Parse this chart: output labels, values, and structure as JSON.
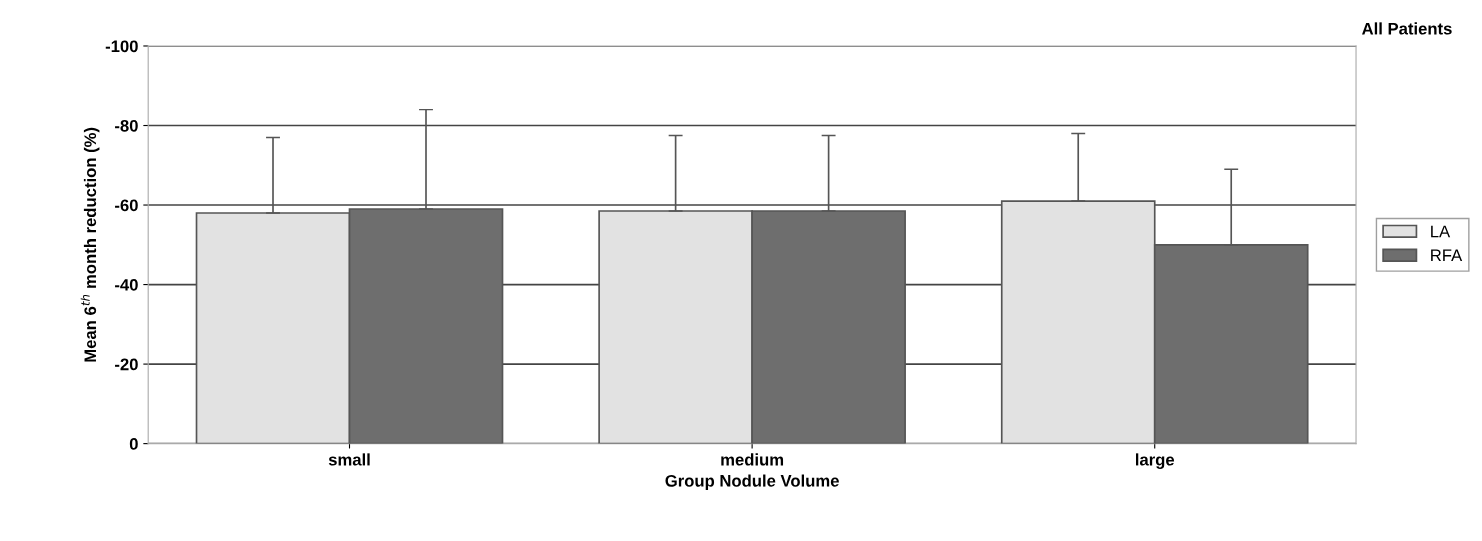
{
  "chart_data": {
    "type": "bar",
    "title": "All Patients",
    "xlabel": "Group Nodule Volume",
    "ylabel": "Mean 6$^{th}$ month reduction (%)",
    "categories": [
      "small",
      "medium",
      "large"
    ],
    "series": [
      {
        "name": "LA",
        "color": "#e2e2e2",
        "values": [
          -58,
          -58.5,
          -61
        ],
        "errors": [
          [
            -77,
            -58
          ],
          [
            -77.5,
            -58.5
          ],
          [
            -78,
            -61
          ]
        ]
      },
      {
        "name": "RFA",
        "color": "#6e6e6e",
        "values": [
          -59,
          -58.5,
          -50
        ],
        "errors": [
          [
            -84,
            -59
          ],
          [
            -77.5,
            -58.5
          ],
          [
            -69,
            -50
          ]
        ]
      }
    ],
    "ylim": [
      0,
      -100
    ],
    "yticks": [
      0,
      -20,
      -40,
      -60,
      -80,
      -100
    ],
    "grid": "y",
    "legend": "right"
  }
}
